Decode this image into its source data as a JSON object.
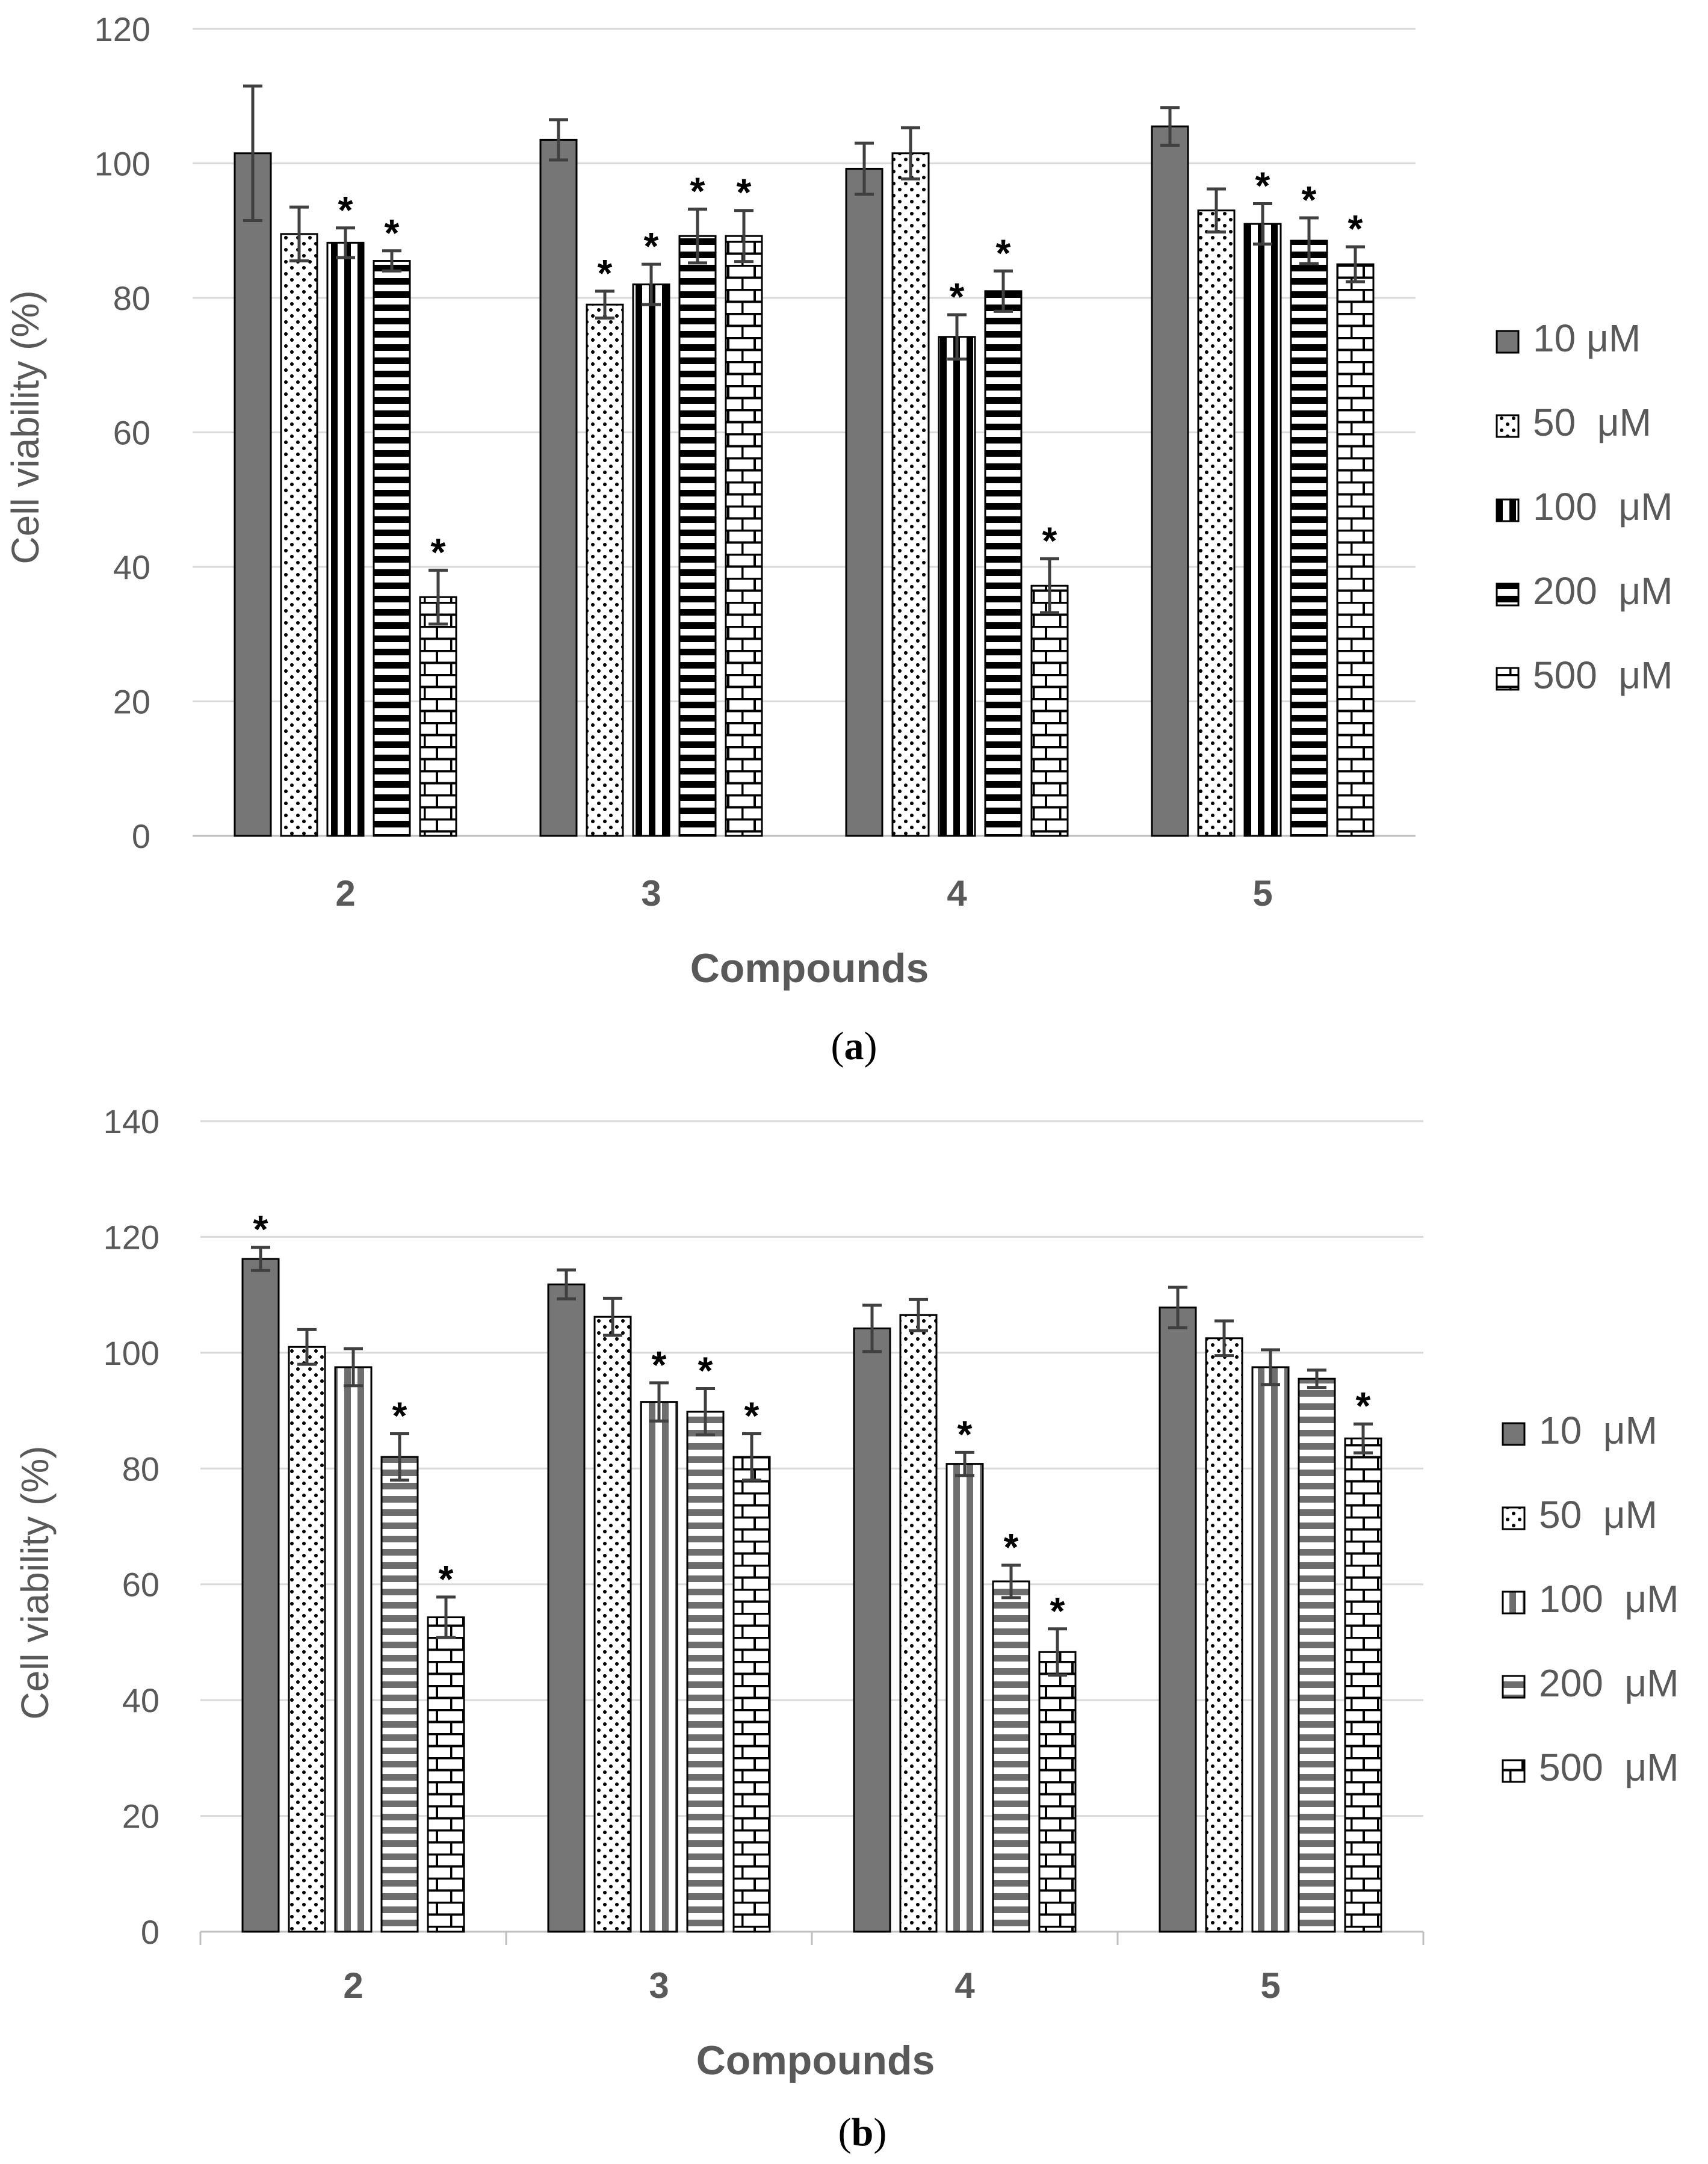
{
  "figure_colors": {
    "bar_dark": "#767676",
    "outline": "#000000",
    "grid": "#d9d9d9",
    "error": "#404040",
    "text": "#595959"
  },
  "chart_data": [
    {
      "type": "bar",
      "panel_label": "(a)",
      "panel_letter": "a",
      "title": "",
      "xlabel": "Compounds",
      "ylabel": "Cell viability (%)",
      "ylim": [
        0,
        120
      ],
      "yticks": [
        "0",
        "20",
        "40",
        "60",
        "80",
        "100",
        "120"
      ],
      "categories": [
        "2",
        "3",
        "4",
        "5"
      ],
      "legend_position": "right",
      "series": [
        {
          "name": "10 μM",
          "pattern": "solid",
          "values": [
            101.5,
            103.5,
            99.2,
            105.5
          ],
          "errors": [
            10,
            3,
            3.8,
            2.8
          ],
          "significant": [
            false,
            false,
            false,
            false
          ]
        },
        {
          "name": "50  μM",
          "pattern": "dots",
          "values": [
            89.5,
            79.0,
            101.5,
            93.0
          ],
          "errors": [
            4,
            2,
            3.8,
            3.2
          ],
          "significant": [
            false,
            true,
            false,
            false
          ]
        },
        {
          "name": "100  μM",
          "pattern": "vstripes",
          "values": [
            88.2,
            82.0,
            74.2,
            91.0
          ],
          "errors": [
            2.2,
            3,
            3.3,
            3
          ],
          "significant": [
            true,
            true,
            true,
            true
          ]
        },
        {
          "name": "200  μM",
          "pattern": "hstripes",
          "values": [
            85.5,
            89.2,
            81.0,
            88.5
          ],
          "errors": [
            1.5,
            4,
            3,
            3.4
          ],
          "significant": [
            true,
            true,
            true,
            true
          ]
        },
        {
          "name": "500  μM",
          "pattern": "bricks",
          "values": [
            35.5,
            89.2,
            37.2,
            85.0
          ],
          "errors": [
            4,
            3.8,
            4,
            2.6
          ],
          "significant": [
            true,
            true,
            true,
            true
          ]
        }
      ]
    },
    {
      "type": "bar",
      "panel_label": "(b)",
      "panel_letter": "b",
      "title": "",
      "xlabel": "Compounds",
      "ylabel": "Cell viability (%)",
      "ylim": [
        0,
        140
      ],
      "yticks": [
        "0",
        "20",
        "40",
        "60",
        "80",
        "100",
        "120",
        "140"
      ],
      "categories": [
        "2",
        "3",
        "4",
        "5"
      ],
      "legend_position": "right",
      "series": [
        {
          "name": "10  μM",
          "pattern": "solid",
          "values": [
            116.2,
            111.8,
            104.2,
            107.8
          ],
          "errors": [
            2,
            2.5,
            4,
            3.5
          ],
          "significant": [
            true,
            false,
            false,
            false
          ]
        },
        {
          "name": "50  μM",
          "pattern": "dots",
          "values": [
            101.0,
            106.2,
            106.5,
            102.5
          ],
          "errors": [
            3,
            3.2,
            2.7,
            3
          ],
          "significant": [
            false,
            false,
            false,
            false
          ]
        },
        {
          "name": "100  μM",
          "pattern": "vstripes-gray",
          "values": [
            97.5,
            91.5,
            80.8,
            97.5
          ],
          "errors": [
            3.2,
            3.3,
            2,
            3
          ],
          "significant": [
            false,
            true,
            true,
            false
          ]
        },
        {
          "name": "200  μM",
          "pattern": "hstripes-gray",
          "values": [
            82.0,
            89.8,
            60.5,
            95.5
          ],
          "errors": [
            4,
            4,
            2.8,
            1.5
          ],
          "significant": [
            true,
            true,
            true,
            false
          ]
        },
        {
          "name": "500  μM",
          "pattern": "bricks",
          "values": [
            54.3,
            82.0,
            48.3,
            85.2
          ],
          "errors": [
            3.5,
            4,
            4,
            2.5
          ],
          "significant": [
            true,
            true,
            true,
            true
          ]
        }
      ]
    }
  ]
}
